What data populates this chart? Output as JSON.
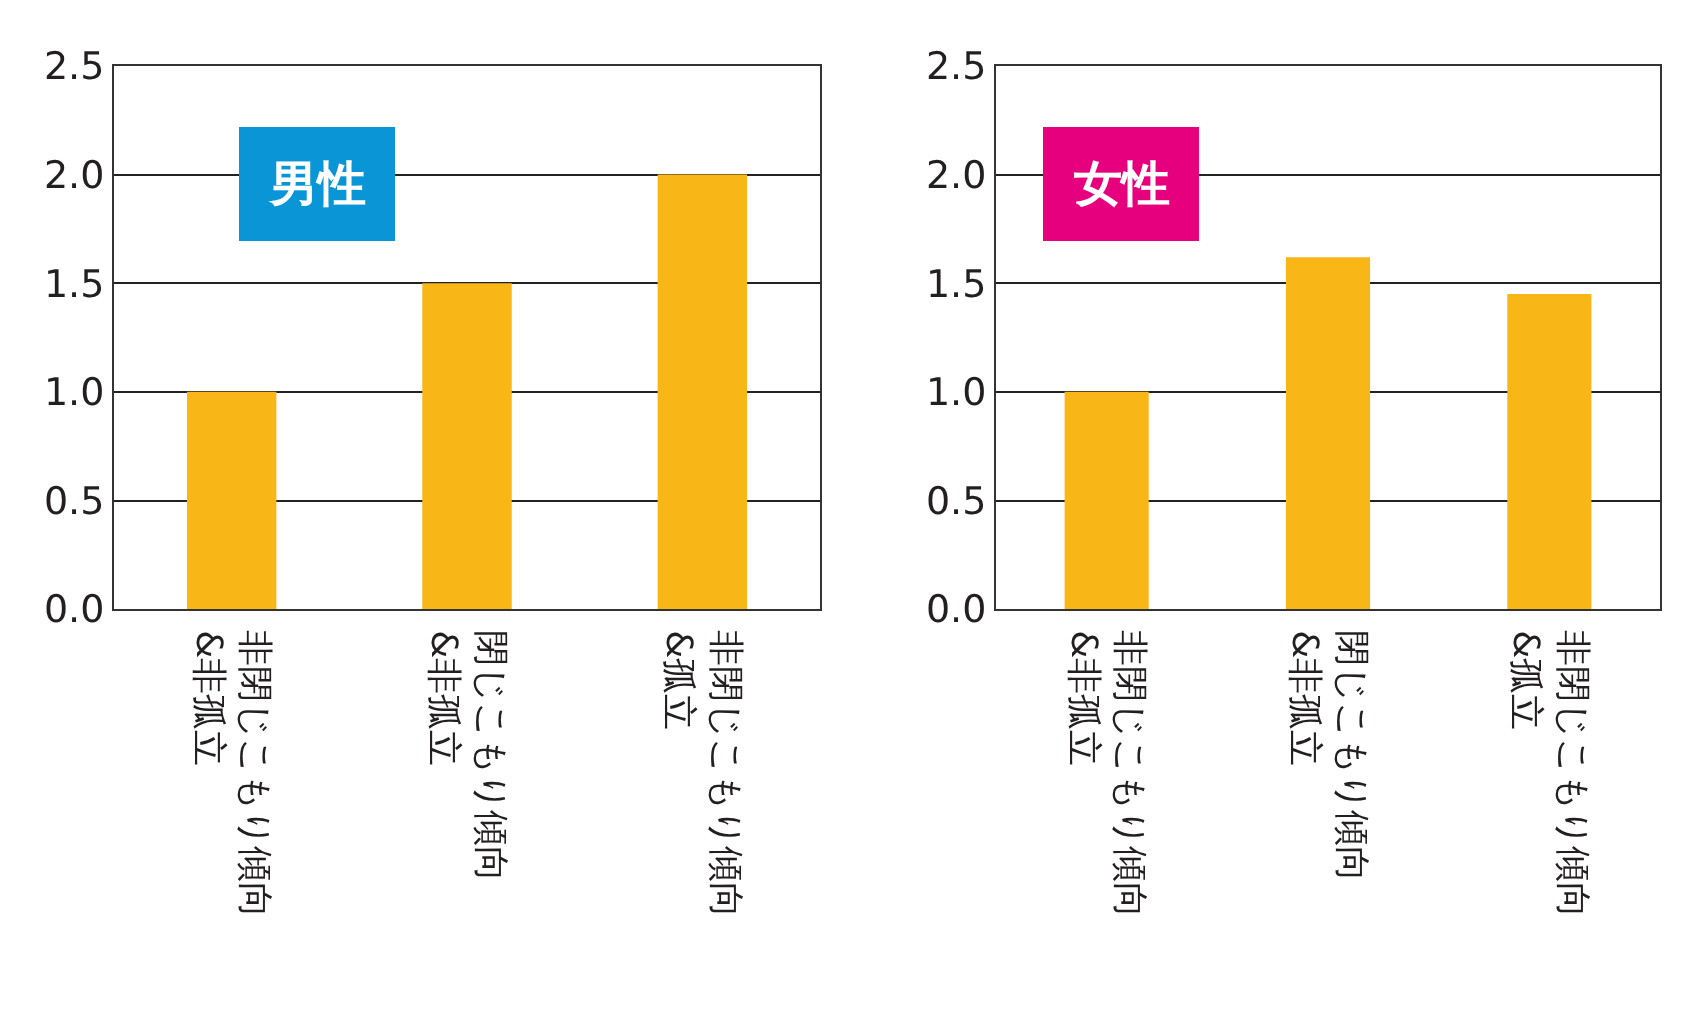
{
  "chart_data": [
    {
      "type": "bar",
      "title": "男性",
      "categories": [
        "非閉じこもり傾向\n&非孤立",
        "閉じこもり傾向\n&非孤立",
        "非閉じこもり傾向\n&孤立"
      ],
      "values": [
        1.0,
        1.5,
        2.0
      ],
      "color": "#f9b617",
      "ylim": [
        0,
        2.5
      ],
      "yticks": [
        {
          "value": 0,
          "label": "0.0"
        },
        0.5,
        {
          "value": 1,
          "label": "1.0"
        },
        1.5,
        {
          "value": 2,
          "label": "2.0"
        },
        2.5
      ],
      "grid": "y"
    },
    {
      "type": "bar",
      "title": "女性",
      "categories": [
        "非閉じこもり傾向\n&非孤立",
        "閉じこもり傾向\n&非孤立",
        "非閉じこもり傾向\n&孤立"
      ],
      "values": [
        1.0,
        1.62,
        1.45
      ],
      "color": "#f9b617",
      "ylim": [
        0,
        2.5
      ],
      "yticks": [
        {
          "value": 0,
          "label": "0.0"
        },
        0.5,
        {
          "value": 1,
          "label": "1.0"
        },
        1.5,
        {
          "value": 2,
          "label": "2.0"
        },
        2.5
      ],
      "grid": "y"
    }
  ]
}
